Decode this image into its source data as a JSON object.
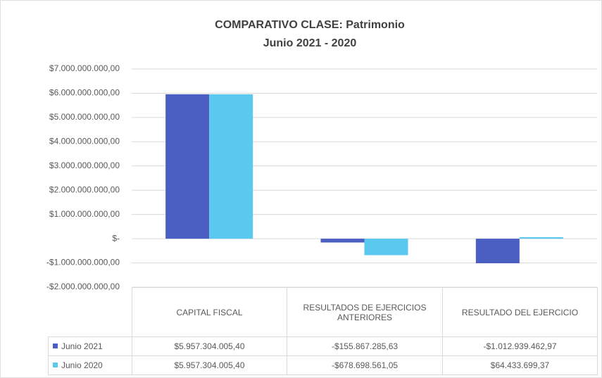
{
  "chart_data": {
    "type": "bar",
    "title": "COMPARATIVO CLASE: Patrimonio",
    "subtitle": "Junio 2021 - 2020",
    "categories": [
      "CAPITAL FISCAL",
      "RESULTADOS DE EJERCICIOS ANTERIORES",
      "RESULTADO DEL EJERCICIO"
    ],
    "series": [
      {
        "name": "Junio 2021",
        "color": "#4a5fc1",
        "values": [
          5957304005.4,
          -155867285.63,
          -1012939462.97
        ],
        "value_labels": [
          "$5.957.304.005,40",
          "-$155.867.285,63",
          "-$1.012.939.462,97"
        ]
      },
      {
        "name": "Junio 2020",
        "color": "#5bc8f0",
        "values": [
          5957304005.4,
          -678698561.05,
          64433699.37
        ],
        "value_labels": [
          "$5.957.304.005,40",
          "-$678.698.561,05",
          "$64.433.699,37"
        ]
      }
    ],
    "ylim": [
      -2000000000,
      7000000000
    ],
    "yticks": [
      {
        "value": -2000000000,
        "label": "-$2.000.000.000,00"
      },
      {
        "value": -1000000000,
        "label": "-$1.000.000.000,00"
      },
      {
        "value": 0,
        "label": "$-"
      },
      {
        "value": 1000000000,
        "label": "$1.000.000.000,00"
      },
      {
        "value": 2000000000,
        "label": "$2.000.000.000,00"
      },
      {
        "value": 3000000000,
        "label": "$3.000.000.000,00"
      },
      {
        "value": 4000000000,
        "label": "$4.000.000.000,00"
      },
      {
        "value": 5000000000,
        "label": "$5.000.000.000,00"
      },
      {
        "value": 6000000000,
        "label": "$6.000.000.000,00"
      },
      {
        "value": 7000000000,
        "label": "$7.000.000.000,00"
      }
    ],
    "grid": true
  }
}
